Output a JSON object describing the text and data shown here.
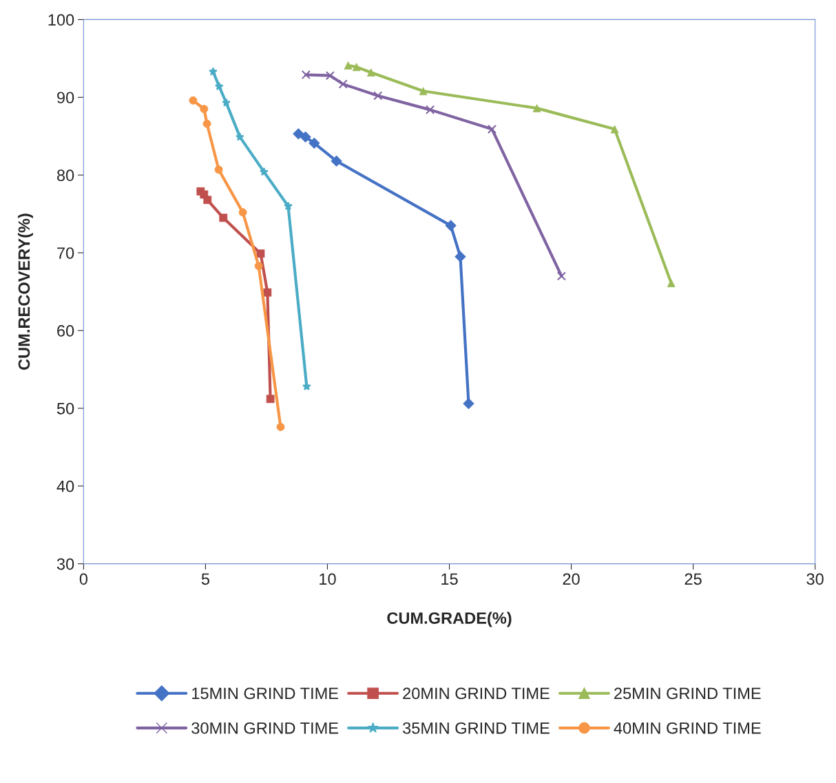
{
  "chart_data": {
    "type": "line",
    "xlabel": "CUM.GRADE(%)",
    "ylabel": "CUM.RECOVERY(%)",
    "xlim": [
      0,
      30
    ],
    "ylim": [
      30,
      100
    ],
    "xticks": [
      0,
      5,
      10,
      15,
      20,
      25,
      30
    ],
    "yticks": [
      30,
      40,
      50,
      60,
      70,
      80,
      90,
      100
    ],
    "grid": false,
    "legend": "bottom",
    "line_style": "solid",
    "series": [
      {
        "name": "15MIN GRIND TIME",
        "color": "#4472c4",
        "marker": "diamond",
        "x": [
          8.81,
          9.1,
          9.46,
          10.37,
          15.06,
          15.45,
          15.79
        ],
        "values": [
          85.3,
          84.9,
          84.1,
          81.8,
          73.5,
          69.5,
          50.6
        ]
      },
      {
        "name": "20MIN GRIND TIME",
        "color": "#c0504d",
        "marker": "square",
        "x": [
          4.8,
          4.94,
          5.08,
          5.73,
          7.26,
          7.54,
          7.66
        ],
        "values": [
          77.9,
          77.5,
          76.8,
          74.5,
          69.9,
          64.9,
          51.2
        ]
      },
      {
        "name": "25MIN GRIND TIME",
        "color": "#9bbb59",
        "marker": "triangle",
        "x": [
          10.85,
          11.19,
          11.79,
          13.93,
          18.59,
          21.78,
          24.1
        ],
        "values": [
          94.1,
          93.9,
          93.2,
          90.8,
          88.6,
          85.9,
          66.1
        ]
      },
      {
        "name": "30MIN GRIND TIME",
        "color": "#8064a2",
        "marker": "cross",
        "x": [
          9.12,
          10.11,
          10.64,
          12.07,
          14.21,
          16.75,
          19.6
        ],
        "values": [
          92.9,
          92.8,
          91.7,
          90.2,
          88.4,
          85.9,
          67.0
        ]
      },
      {
        "name": "35MIN GRIND TIME",
        "color": "#4bacc6",
        "marker": "star",
        "x": [
          5.31,
          5.56,
          5.85,
          6.41,
          7.4,
          8.39,
          9.15
        ],
        "values": [
          93.3,
          91.4,
          89.3,
          84.9,
          80.4,
          76.0,
          52.8
        ]
      },
      {
        "name": "40MIN GRIND TIME",
        "color": "#f79646",
        "marker": "circle",
        "x": [
          4.49,
          4.94,
          5.06,
          5.54,
          6.53,
          7.18,
          8.08
        ],
        "values": [
          89.6,
          88.5,
          86.6,
          80.7,
          75.2,
          68.3,
          47.6
        ]
      }
    ]
  }
}
